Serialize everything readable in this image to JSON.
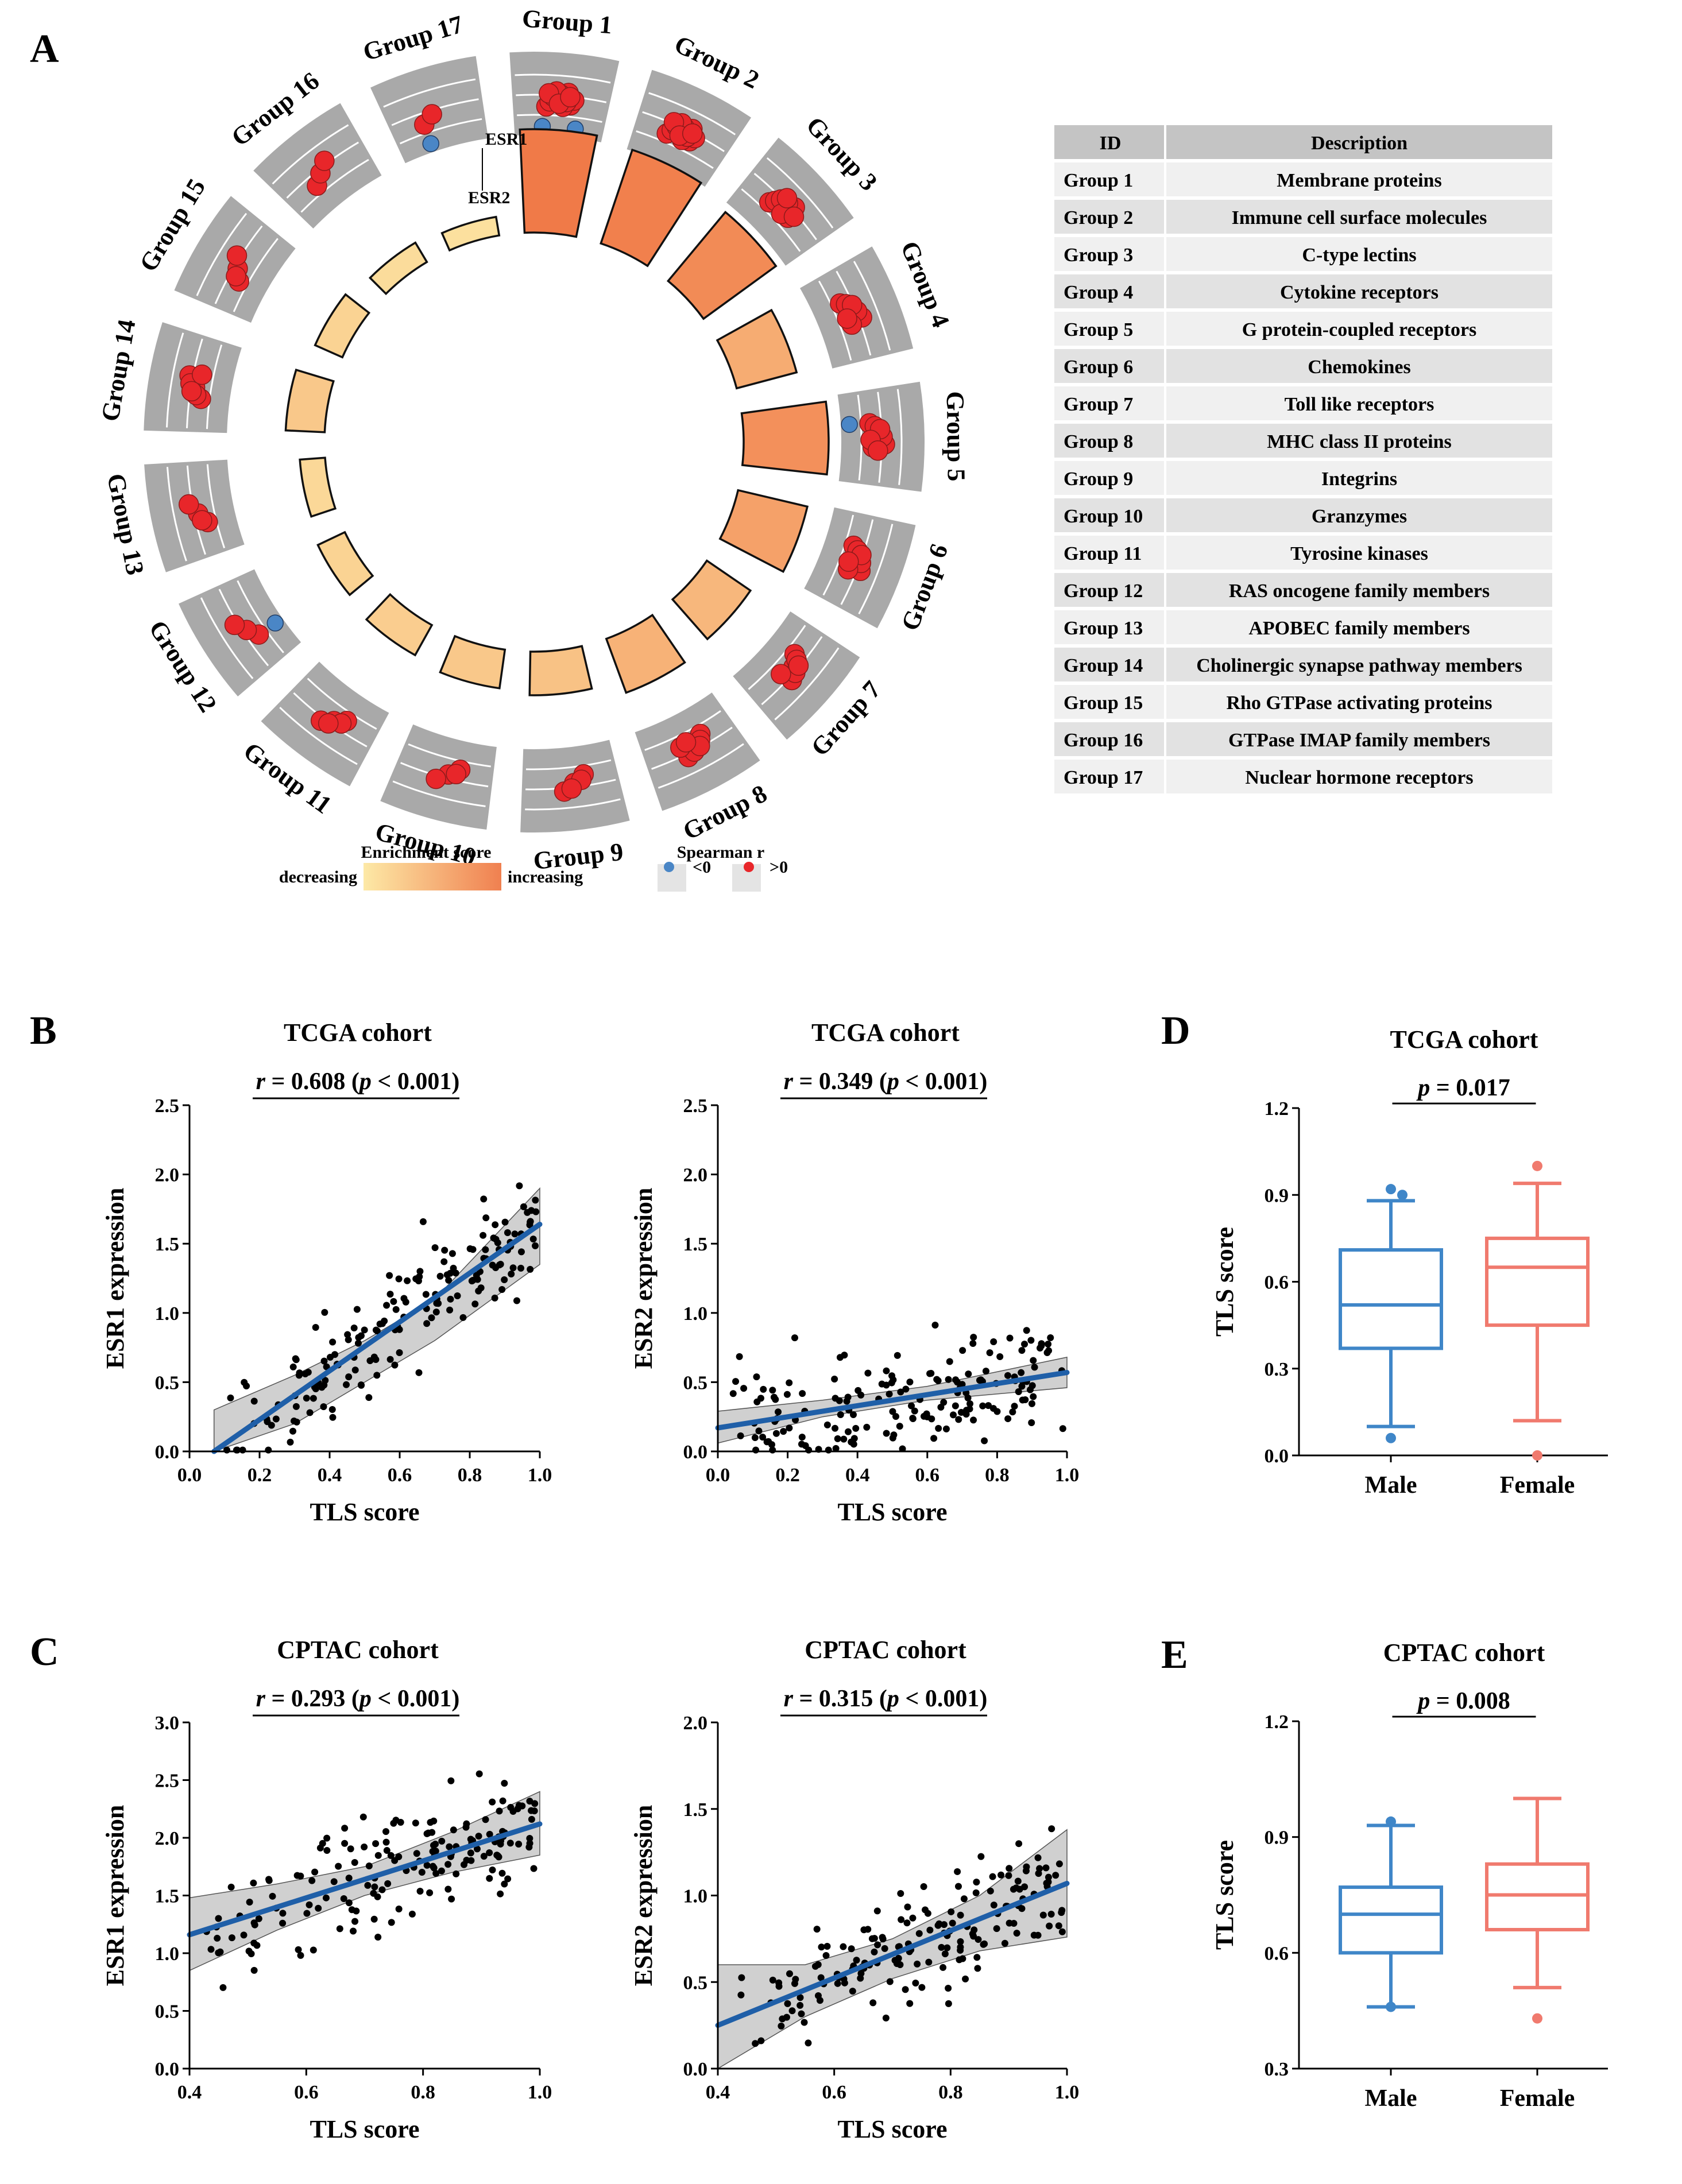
{
  "panels": {
    "a": "A",
    "b": "B",
    "c": "C",
    "d": "D",
    "e": "E"
  },
  "circos": {
    "groups": [
      {
        "label": "Group 1",
        "enrichment": 1.0,
        "pos": 14,
        "neg": 2
      },
      {
        "label": "Group 2",
        "enrichment": 0.95,
        "pos": 14,
        "neg": 0
      },
      {
        "label": "Group 3",
        "enrichment": 0.85,
        "pos": 10,
        "neg": 0
      },
      {
        "label": "Group 4",
        "enrichment": 0.55,
        "pos": 8,
        "neg": 0
      },
      {
        "label": "Group 5",
        "enrichment": 0.8,
        "pos": 9,
        "neg": 1
      },
      {
        "label": "Group 6",
        "enrichment": 0.65,
        "pos": 8,
        "neg": 0
      },
      {
        "label": "Group 7",
        "enrichment": 0.45,
        "pos": 7,
        "neg": 0
      },
      {
        "label": "Group 8",
        "enrichment": 0.5,
        "pos": 8,
        "neg": 0
      },
      {
        "label": "Group 9",
        "enrichment": 0.35,
        "pos": 5,
        "neg": 0
      },
      {
        "label": "Group 10",
        "enrichment": 0.3,
        "pos": 4,
        "neg": 0
      },
      {
        "label": "Group 11",
        "enrichment": 0.25,
        "pos": 5,
        "neg": 0
      },
      {
        "label": "Group 12",
        "enrichment": 0.2,
        "pos": 3,
        "neg": 1
      },
      {
        "label": "Group 13",
        "enrichment": 0.15,
        "pos": 4,
        "neg": 0
      },
      {
        "label": "Group 14",
        "enrichment": 0.3,
        "pos": 7,
        "neg": 0
      },
      {
        "label": "Group 15",
        "enrichment": 0.2,
        "pos": 4,
        "neg": 0
      },
      {
        "label": "Group 16",
        "enrichment": 0.12,
        "pos": 3,
        "neg": 0
      },
      {
        "label": "Group 17",
        "enrichment": 0.08,
        "pos": 2,
        "neg": 1
      }
    ],
    "esr1_label": "ESR1",
    "esr2_label": "ESR2",
    "legend": {
      "enrichment_title": "Enrichment score",
      "decreasing": "decreasing",
      "increasing": "increasing",
      "spearman_title": "Spearman r",
      "neg": "<0",
      "pos": ">0",
      "neg_color": "#4a86c6",
      "pos_color": "#e8262a"
    }
  },
  "table": {
    "headers": [
      "ID",
      "Description"
    ],
    "rows": [
      [
        "Group 1",
        "Membrane proteins"
      ],
      [
        "Group 2",
        "Immune cell surface molecules"
      ],
      [
        "Group 3",
        "C-type lectins"
      ],
      [
        "Group 4",
        "Cytokine receptors"
      ],
      [
        "Group 5",
        "G protein-coupled receptors"
      ],
      [
        "Group 6",
        "Chemokines"
      ],
      [
        "Group 7",
        "Toll like receptors"
      ],
      [
        "Group 8",
        "MHC class II proteins"
      ],
      [
        "Group 9",
        "Integrins"
      ],
      [
        "Group 10",
        "Granzymes"
      ],
      [
        "Group 11",
        "Tyrosine kinases"
      ],
      [
        "Group 12",
        "RAS oncogene family members"
      ],
      [
        "Group 13",
        "APOBEC family members"
      ],
      [
        "Group 14",
        "Cholinergic synapse pathway members"
      ],
      [
        "Group 15",
        "Rho GTPase activating proteins"
      ],
      [
        "Group 16",
        "GTPase IMAP family members"
      ],
      [
        "Group 17",
        "Nuclear hormone receptors"
      ]
    ]
  },
  "chart_data": [
    {
      "type": "scatter",
      "id": "b1",
      "title": "TCGA cohort",
      "stat": {
        "r_sym": "r",
        "r_text": " = 0.608 (",
        "p_sym": "p",
        "p_text": " < 0.001)"
      },
      "xlabel": "TLS score",
      "ylabel": "ESR1 expression",
      "xlim": [
        0.0,
        1.0
      ],
      "ylim": [
        0.0,
        2.5
      ],
      "xticks": [
        "0.0",
        "0.2",
        "0.4",
        "0.6",
        "0.8",
        "1.0"
      ],
      "yticks": [
        "0.0",
        "0.5",
        "1.0",
        "1.5",
        "2.0",
        "2.5"
      ],
      "fit": {
        "x": [
          0.07,
          1.0
        ],
        "y": [
          0.0,
          1.64
        ]
      },
      "ci": {
        "x": [
          0.07,
          0.3,
          0.5,
          0.7,
          1.0
        ],
        "lo": [
          -0.15,
          0.2,
          0.5,
          0.8,
          1.35
        ],
        "hi": [
          0.3,
          0.55,
          0.8,
          1.1,
          1.9
        ]
      }
    },
    {
      "type": "scatter",
      "id": "b2",
      "title": "TCGA cohort",
      "stat": {
        "r_sym": "r",
        "r_text": " = 0.349 (",
        "p_sym": "p",
        "p_text": " < 0.001)"
      },
      "xlabel": "TLS score",
      "ylabel": "ESR2 expression",
      "xlim": [
        0.0,
        1.0
      ],
      "ylim": [
        0.0,
        2.5
      ],
      "xticks": [
        "0.0",
        "0.2",
        "0.4",
        "0.6",
        "0.8",
        "1.0"
      ],
      "yticks": [
        "0.0",
        "0.5",
        "1.0",
        "1.5",
        "2.0",
        "2.5"
      ],
      "fit": {
        "x": [
          0.0,
          1.0
        ],
        "y": [
          0.17,
          0.57
        ]
      },
      "ci": {
        "x": [
          0.0,
          0.3,
          0.6,
          1.0
        ],
        "lo": [
          0.06,
          0.25,
          0.37,
          0.46
        ],
        "hi": [
          0.29,
          0.37,
          0.47,
          0.68
        ]
      }
    },
    {
      "type": "scatter",
      "id": "c1",
      "title": "CPTAC cohort",
      "stat": {
        "r_sym": "r",
        "r_text": " = 0.293 (",
        "p_sym": "p",
        "p_text": " < 0.001)"
      },
      "xlabel": "TLS score",
      "ylabel": "ESR1 expression",
      "xlim": [
        0.4,
        1.0
      ],
      "ylim": [
        0.0,
        3.0
      ],
      "xticks": [
        "0.4",
        "0.6",
        "0.8",
        "1.0"
      ],
      "yticks": [
        "0.0",
        "0.5",
        "1.0",
        "1.5",
        "2.0",
        "2.5",
        "3.0"
      ],
      "fit": {
        "x": [
          0.4,
          1.0
        ],
        "y": [
          1.16,
          2.12
        ]
      },
      "ci": {
        "x": [
          0.4,
          0.55,
          0.7,
          0.85,
          1.0
        ],
        "lo": [
          0.85,
          1.2,
          1.5,
          1.7,
          1.85
        ],
        "hi": [
          1.48,
          1.6,
          1.75,
          2.05,
          2.4
        ]
      }
    },
    {
      "type": "scatter",
      "id": "c2",
      "title": "CPTAC cohort",
      "stat": {
        "r_sym": "r",
        "r_text": " = 0.315 (",
        "p_sym": "p",
        "p_text": " < 0.001)"
      },
      "xlabel": "TLS score",
      "ylabel": "ESR2 expression",
      "xlim": [
        0.4,
        1.0
      ],
      "ylim": [
        0.0,
        2.0
      ],
      "xticks": [
        "0.4",
        "0.6",
        "0.8",
        "1.0"
      ],
      "yticks": [
        "0.0",
        "0.5",
        "1.0",
        "1.5",
        "2.0"
      ],
      "fit": {
        "x": [
          0.4,
          1.0
        ],
        "y": [
          0.25,
          1.07
        ]
      },
      "ci": {
        "x": [
          0.4,
          0.55,
          0.7,
          0.85,
          1.0
        ],
        "lo": [
          -0.05,
          0.3,
          0.52,
          0.68,
          0.76
        ],
        "hi": [
          0.6,
          0.6,
          0.75,
          1.0,
          1.38
        ]
      }
    },
    {
      "type": "box",
      "id": "d",
      "title": "TCGA cohort",
      "stat": {
        "p_sym": "p",
        "p_text": " = 0.017"
      },
      "ylabel": "TLS score",
      "ylim": [
        0.0,
        1.2
      ],
      "yticks": [
        "0.0",
        "0.3",
        "0.6",
        "0.9",
        "1.2"
      ],
      "categories": [
        "Male",
        "Female"
      ],
      "boxes": [
        {
          "name": "Male",
          "whisker_low": 0.1,
          "q1": 0.37,
          "median": 0.52,
          "q3": 0.71,
          "whisker_high": 0.88,
          "outliers": [
            0.06,
            0.92,
            0.9
          ],
          "color": "#3f86c8"
        },
        {
          "name": "Female",
          "whisker_low": 0.12,
          "q1": 0.45,
          "median": 0.65,
          "q3": 0.75,
          "whisker_high": 0.94,
          "outliers": [
            0.0,
            1.0
          ],
          "color": "#f07a6e"
        }
      ]
    },
    {
      "type": "box",
      "id": "e",
      "title": "CPTAC cohort",
      "stat": {
        "p_sym": "p",
        "p_text": " = 0.008"
      },
      "ylabel": "TLS score",
      "ylim": [
        0.3,
        1.2
      ],
      "yticks": [
        "0.3",
        "0.6",
        "0.9",
        "1.2"
      ],
      "categories": [
        "Male",
        "Female"
      ],
      "boxes": [
        {
          "name": "Male",
          "whisker_low": 0.46,
          "q1": 0.6,
          "median": 0.7,
          "q3": 0.77,
          "whisker_high": 0.93,
          "outliers": [
            0.46,
            0.94
          ],
          "color": "#3f86c8"
        },
        {
          "name": "Female",
          "whisker_low": 0.51,
          "q1": 0.66,
          "median": 0.75,
          "q3": 0.83,
          "whisker_high": 1.0,
          "outliers": [
            0.43
          ],
          "color": "#f07a6e"
        }
      ]
    }
  ]
}
